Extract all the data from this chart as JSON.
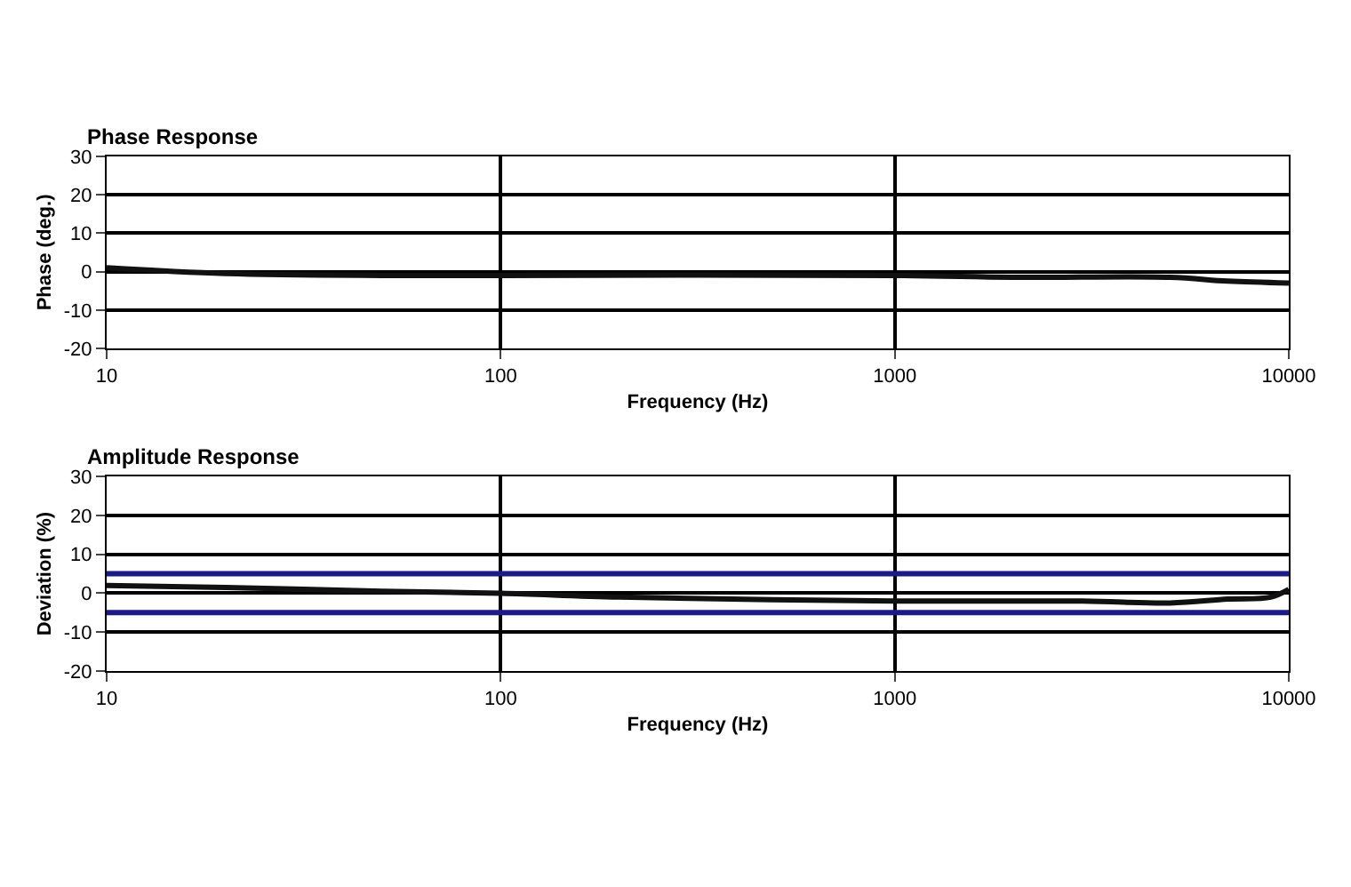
{
  "chart_data": [
    {
      "type": "line",
      "title": "Phase Response",
      "xlabel": "Frequency (Hz)",
      "ylabel": "Phase (deg.)",
      "log": "x",
      "x": [
        10,
        20,
        50,
        100,
        1000,
        2000,
        5000,
        7000,
        10000
      ],
      "series": [
        {
          "color": "#111111",
          "values": [
            1,
            -0.5,
            -1,
            -1,
            -1,
            -1.5,
            -1.5,
            -2.5,
            -3
          ]
        }
      ],
      "xlim": [
        10,
        10000
      ],
      "xticks": [
        10,
        100,
        1000,
        10000
      ],
      "ylim": [
        -20,
        30
      ],
      "yticks": [
        -20,
        -10,
        0,
        10,
        20,
        30
      ],
      "grid": true
    },
    {
      "type": "line",
      "title": "Amplitude Response",
      "xlabel": "Frequency (Hz)",
      "ylabel": "Deviation (%)",
      "log": "x",
      "x": [
        10,
        20,
        50,
        100,
        200,
        1000,
        3000,
        5000,
        7000,
        9000,
        10000
      ],
      "series": [
        {
          "color": "#111111",
          "values": [
            2,
            1.5,
            0.5,
            0,
            -1,
            -2,
            -2,
            -2.5,
            -1.5,
            -1,
            1
          ]
        }
      ],
      "ref_lines": [
        {
          "axis": "y",
          "value": 5,
          "color": "#1a1a8c"
        },
        {
          "axis": "y",
          "value": -5,
          "color": "#1a1a8c"
        }
      ],
      "xlim": [
        10,
        10000
      ],
      "xticks": [
        10,
        100,
        1000,
        10000
      ],
      "ylim": [
        -20,
        30
      ],
      "yticks": [
        -20,
        -10,
        0,
        10,
        20,
        30
      ],
      "grid": true
    }
  ]
}
